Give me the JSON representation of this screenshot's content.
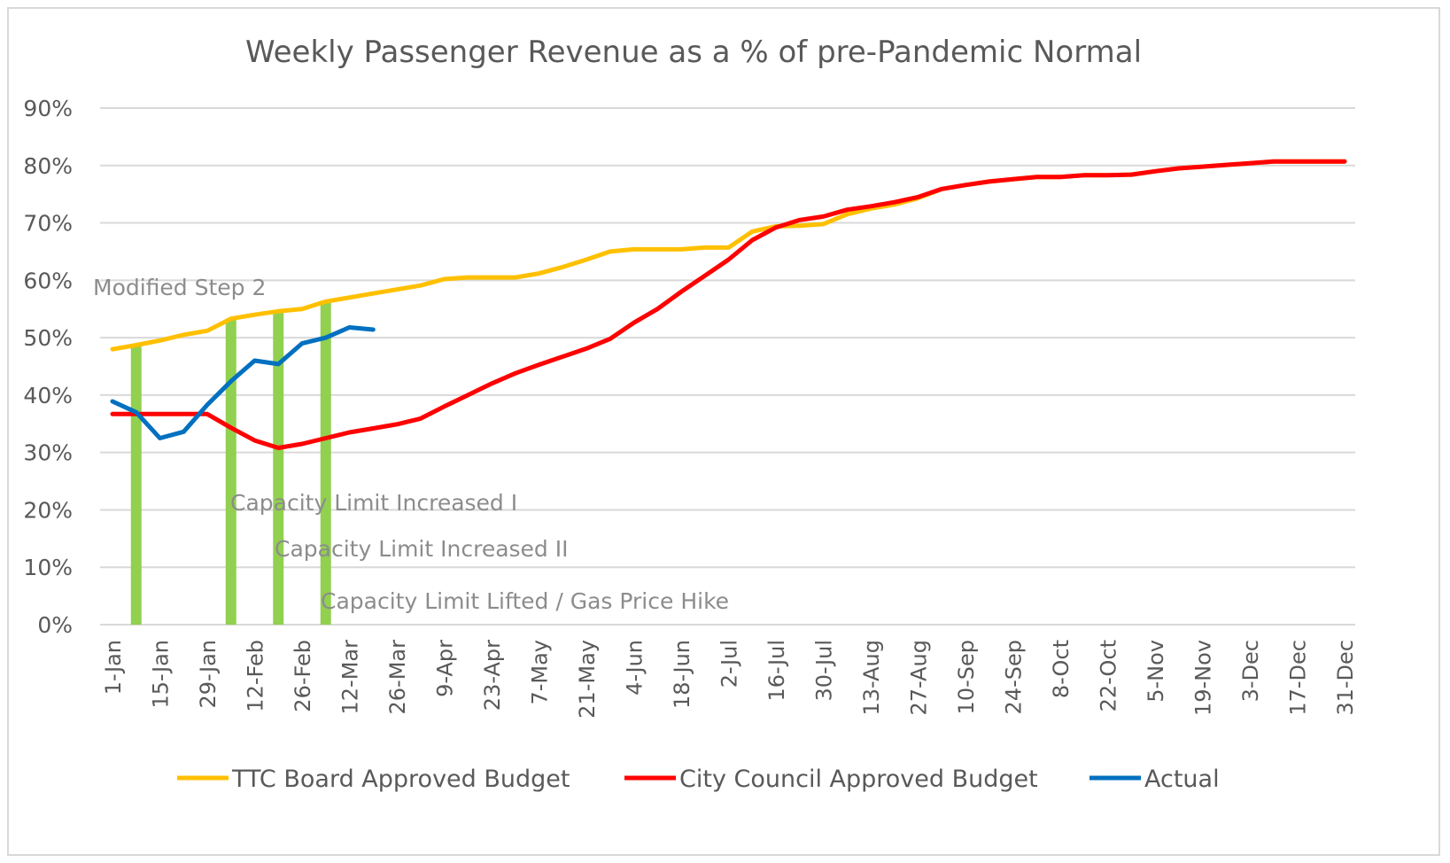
{
  "chart_data": {
    "type": "line",
    "title": "Weekly Passenger Revenue as a % of pre-Pandemic Normal",
    "xlabel": "",
    "ylabel": "",
    "ylim": [
      0,
      90
    ],
    "yticks": [
      "0%",
      "10%",
      "20%",
      "30%",
      "40%",
      "50%",
      "60%",
      "70%",
      "80%",
      "90%"
    ],
    "ytick_values": [
      0,
      10,
      20,
      30,
      40,
      50,
      60,
      70,
      80,
      90
    ],
    "grid": true,
    "legend_position": "bottom",
    "x_tick_labels": [
      "1-Jan",
      "15-Jan",
      "29-Jan",
      "12-Feb",
      "26-Feb",
      "12-Mar",
      "26-Mar",
      "9-Apr",
      "23-Apr",
      "7-May",
      "21-May",
      "4-Jun",
      "18-Jun",
      "2-Jul",
      "16-Jul",
      "30-Jul",
      "13-Aug",
      "27-Aug",
      "10-Sep",
      "24-Sep",
      "8-Oct",
      "22-Oct",
      "5-Nov",
      "19-Nov",
      "3-Dec",
      "17-Dec",
      "31-Dec"
    ],
    "x_weeks": 53,
    "series": [
      {
        "name": "TTC Board Approved Budget",
        "color": "#ffc000",
        "values": [
          48,
          48.7,
          49.5,
          50.5,
          51.2,
          53.3,
          54,
          54.6,
          55,
          56.3,
          57,
          57.7,
          58.4,
          59.1,
          60.2,
          60.5,
          60.5,
          60.5,
          61.2,
          62.3,
          63.6,
          65,
          65.4,
          65.4,
          65.4,
          65.7,
          65.7,
          68.5,
          69.4,
          69.5,
          69.8,
          71.5,
          72.5,
          73.2,
          74.3,
          75.9,
          76.6,
          77.2,
          77.6,
          78,
          78,
          78.3,
          78.3,
          78.4,
          79,
          79.5,
          79.8,
          80.1,
          80.4,
          80.7,
          80.7,
          80.7,
          80.7
        ]
      },
      {
        "name": "City Council Approved Budget",
        "color": "#ff0000",
        "values": [
          36.7,
          36.7,
          36.7,
          36.7,
          36.7,
          34.3,
          32.1,
          30.8,
          31.5,
          32.5,
          33.5,
          34.2,
          34.9,
          35.9,
          38,
          40,
          42,
          43.8,
          45.3,
          46.7,
          48.1,
          49.8,
          52.6,
          55,
          58,
          60.8,
          63.6,
          67,
          69.2,
          70.5,
          71.1,
          72.3,
          72.9,
          73.6,
          74.5,
          75.9,
          76.6,
          77.2,
          77.6,
          78,
          78,
          78.3,
          78.3,
          78.4,
          79,
          79.5,
          79.8,
          80.1,
          80.4,
          80.7,
          80.7,
          80.7,
          80.7
        ]
      },
      {
        "name": "Actual",
        "color": "#0070c0",
        "values": [
          38.9,
          37,
          32.5,
          33.6,
          38.3,
          42.4,
          46,
          45.4,
          49,
          50,
          51.8,
          51.4
        ]
      }
    ],
    "events": [
      {
        "label": "Modified Step 2",
        "week_index": 1,
        "color": "#92d050"
      },
      {
        "label": "Capacity Limit Increased I",
        "week_index": 5,
        "color": "#92d050"
      },
      {
        "label": "Capacity Limit Increased II",
        "week_index": 7,
        "color": "#92d050"
      },
      {
        "label": "Capacity Limit Lifted / Gas Price Hike",
        "week_index": 9,
        "color": "#92d050"
      }
    ]
  }
}
